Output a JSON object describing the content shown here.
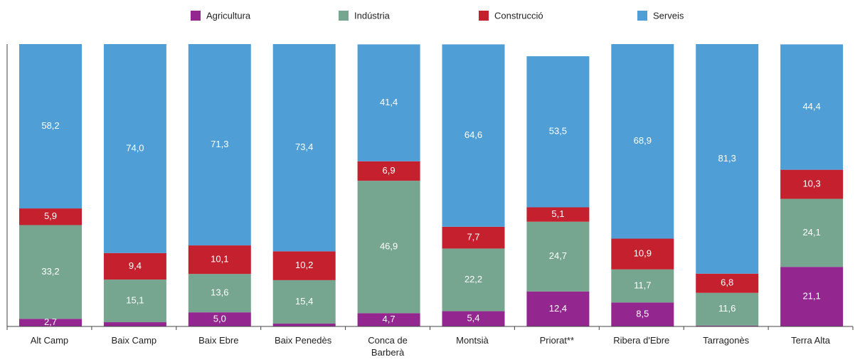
{
  "chart_data": {
    "type": "stacked_bar",
    "categories": [
      "Alt Camp",
      "Baix Camp",
      "Baix Ebre",
      "Baix Penedès",
      "Conca de Barberà",
      "Montsià",
      "Priorat**",
      "Ribera d'Ebre",
      "Tarragonès",
      "Terra Alta"
    ],
    "series": [
      {
        "name": "Agricultura",
        "color": "#93278f",
        "values": [
          2.7,
          1.5,
          5.0,
          1.0,
          4.7,
          5.4,
          12.4,
          8.5,
          0.3,
          21.1
        ],
        "value_labels": [
          "2,7",
          null,
          "5,0",
          null,
          "4,7",
          "5,4",
          "12,4",
          "8,5",
          null,
          "21,1"
        ]
      },
      {
        "name": "Indústria",
        "color": "#76a68f",
        "values": [
          33.2,
          15.1,
          13.6,
          15.4,
          46.9,
          22.2,
          24.7,
          11.7,
          11.6,
          24.1
        ],
        "value_labels": [
          "33,2",
          "15,1",
          "13,6",
          "15,4",
          "46,9",
          "22,2",
          "24,7",
          "11,7",
          "11,6",
          "24,1"
        ]
      },
      {
        "name": "Construcció",
        "color": "#c4202e",
        "values": [
          5.9,
          9.4,
          10.1,
          10.2,
          6.9,
          7.7,
          5.1,
          10.9,
          6.8,
          10.3
        ],
        "value_labels": [
          "5,9",
          "9,4",
          "10,1",
          "10,2",
          "6,9",
          "7,7",
          "5,1",
          "10,9",
          "6,8",
          "10,3"
        ]
      },
      {
        "name": "Serveis",
        "color": "#4f9fd6",
        "values": [
          58.2,
          74.0,
          71.3,
          73.4,
          41.4,
          64.6,
          53.5,
          68.9,
          81.3,
          44.4
        ],
        "value_labels": [
          "58,2",
          "74,0",
          "71,3",
          "73,4",
          "41,4",
          "64,6",
          "53,5",
          "68,9",
          "81,3",
          "44,4"
        ]
      }
    ],
    "ylim": [
      0,
      100
    ],
    "legend": "top"
  }
}
